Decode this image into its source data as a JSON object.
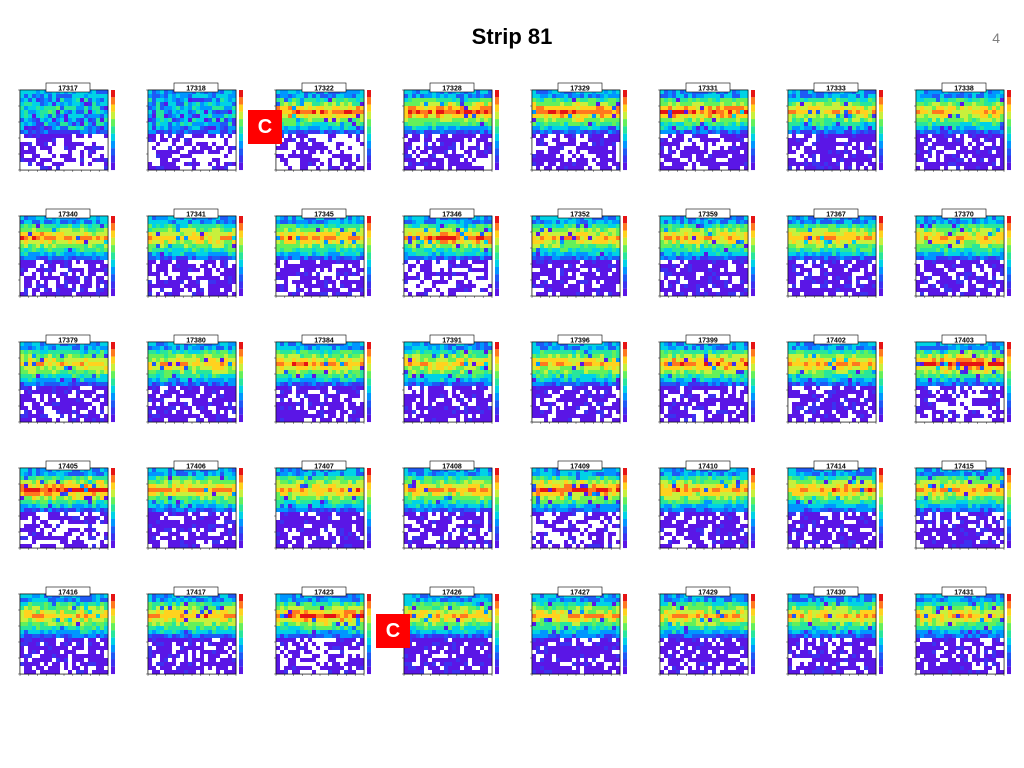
{
  "slide": {
    "title": "Strip 81",
    "page_number": "4"
  },
  "marker_label": "C",
  "palette": [
    "#ffffff",
    "#5a16e6",
    "#3c32f0",
    "#1e5af5",
    "#0096ff",
    "#00d2e6",
    "#28e69b",
    "#64f05a",
    "#c8f03c",
    "#ffd21e",
    "#ff781e",
    "#e61414"
  ],
  "chart_data": {
    "type": "heatmap",
    "panels": [
      {
        "run": "17317",
        "band_strength": 0.1,
        "upper_noise": 0.85,
        "lower_density": 0.5,
        "seed": 17317
      },
      {
        "run": "17318",
        "band_strength": 0.1,
        "upper_noise": 0.8,
        "lower_density": 0.45,
        "seed": 17318
      },
      {
        "run": "17322",
        "band_strength": 0.85,
        "upper_noise": 0.25,
        "lower_density": 0.45,
        "seed": 17322,
        "flag": "C"
      },
      {
        "run": "17328",
        "band_strength": 0.9,
        "upper_noise": 0.2,
        "lower_density": 0.35,
        "seed": 17328
      },
      {
        "run": "17329",
        "band_strength": 0.9,
        "upper_noise": 0.2,
        "lower_density": 0.3,
        "seed": 17329
      },
      {
        "run": "17331",
        "band_strength": 0.9,
        "upper_noise": 0.2,
        "lower_density": 0.3,
        "seed": 17331
      },
      {
        "run": "17333",
        "band_strength": 0.75,
        "upper_noise": 0.25,
        "lower_density": 0.25,
        "seed": 17333
      },
      {
        "run": "17338",
        "band_strength": 0.75,
        "upper_noise": 0.2,
        "lower_density": 0.25,
        "seed": 17338
      },
      {
        "run": "17340",
        "band_strength": 0.8,
        "upper_noise": 0.2,
        "lower_density": 0.25,
        "seed": 17340
      },
      {
        "run": "17341",
        "band_strength": 0.75,
        "upper_noise": 0.2,
        "lower_density": 0.3,
        "seed": 17341
      },
      {
        "run": "17345",
        "band_strength": 0.8,
        "upper_noise": 0.2,
        "lower_density": 0.3,
        "seed": 17345
      },
      {
        "run": "17346",
        "band_strength": 0.85,
        "upper_noise": 0.3,
        "lower_density": 0.5,
        "seed": 17346
      },
      {
        "run": "17352",
        "band_strength": 0.75,
        "upper_noise": 0.2,
        "lower_density": 0.25,
        "seed": 17352
      },
      {
        "run": "17359",
        "band_strength": 0.75,
        "upper_noise": 0.2,
        "lower_density": 0.25,
        "seed": 17359
      },
      {
        "run": "17367",
        "band_strength": 0.8,
        "upper_noise": 0.2,
        "lower_density": 0.25,
        "seed": 17367
      },
      {
        "run": "17370",
        "band_strength": 0.75,
        "upper_noise": 0.2,
        "lower_density": 0.25,
        "seed": 17370
      },
      {
        "run": "17379",
        "band_strength": 0.75,
        "upper_noise": 0.2,
        "lower_density": 0.25,
        "seed": 17379
      },
      {
        "run": "17380",
        "band_strength": 0.75,
        "upper_noise": 0.2,
        "lower_density": 0.25,
        "seed": 17380
      },
      {
        "run": "17384",
        "band_strength": 0.8,
        "upper_noise": 0.2,
        "lower_density": 0.25,
        "seed": 17384
      },
      {
        "run": "17391",
        "band_strength": 0.75,
        "upper_noise": 0.2,
        "lower_density": 0.25,
        "seed": 17391
      },
      {
        "run": "17396",
        "band_strength": 0.75,
        "upper_noise": 0.2,
        "lower_density": 0.3,
        "seed": 17396
      },
      {
        "run": "17399",
        "band_strength": 0.85,
        "upper_noise": 0.2,
        "lower_density": 0.35,
        "seed": 17399
      },
      {
        "run": "17402",
        "band_strength": 0.8,
        "upper_noise": 0.2,
        "lower_density": 0.3,
        "seed": 17402
      },
      {
        "run": "17403",
        "band_strength": 0.95,
        "upper_noise": 0.3,
        "lower_density": 0.45,
        "seed": 17403
      },
      {
        "run": "17405",
        "band_strength": 0.95,
        "upper_noise": 0.3,
        "lower_density": 0.5,
        "seed": 17405
      },
      {
        "run": "17406",
        "band_strength": 0.8,
        "upper_noise": 0.2,
        "lower_density": 0.25,
        "seed": 17406
      },
      {
        "run": "17407",
        "band_strength": 0.8,
        "upper_noise": 0.2,
        "lower_density": 0.25,
        "seed": 17407
      },
      {
        "run": "17408",
        "band_strength": 0.8,
        "upper_noise": 0.2,
        "lower_density": 0.3,
        "seed": 17408
      },
      {
        "run": "17409",
        "band_strength": 0.9,
        "upper_noise": 0.3,
        "lower_density": 0.45,
        "seed": 17409
      },
      {
        "run": "17410",
        "band_strength": 0.8,
        "upper_noise": 0.2,
        "lower_density": 0.25,
        "seed": 17410
      },
      {
        "run": "17414",
        "band_strength": 0.8,
        "upper_noise": 0.2,
        "lower_density": 0.25,
        "seed": 17414
      },
      {
        "run": "17415",
        "band_strength": 0.8,
        "upper_noise": 0.2,
        "lower_density": 0.25,
        "seed": 17415
      },
      {
        "run": "17416",
        "band_strength": 0.75,
        "upper_noise": 0.2,
        "lower_density": 0.25,
        "seed": 17416
      },
      {
        "run": "17417",
        "band_strength": 0.8,
        "upper_noise": 0.2,
        "lower_density": 0.25,
        "seed": 17417
      },
      {
        "run": "17423",
        "band_strength": 0.9,
        "upper_noise": 0.25,
        "lower_density": 0.4,
        "seed": 17423
      },
      {
        "run": "17426",
        "band_strength": 0.75,
        "upper_noise": 0.2,
        "lower_density": 0.25,
        "seed": 17426,
        "flag": "C"
      },
      {
        "run": "17427",
        "band_strength": 0.75,
        "upper_noise": 0.2,
        "lower_density": 0.25,
        "seed": 17427
      },
      {
        "run": "17429",
        "band_strength": 0.75,
        "upper_noise": 0.2,
        "lower_density": 0.25,
        "seed": 17429
      },
      {
        "run": "17430",
        "band_strength": 0.75,
        "upper_noise": 0.2,
        "lower_density": 0.25,
        "seed": 17430
      },
      {
        "run": "17431",
        "band_strength": 0.75,
        "upper_noise": 0.2,
        "lower_density": 0.25,
        "seed": 17431
      }
    ]
  }
}
